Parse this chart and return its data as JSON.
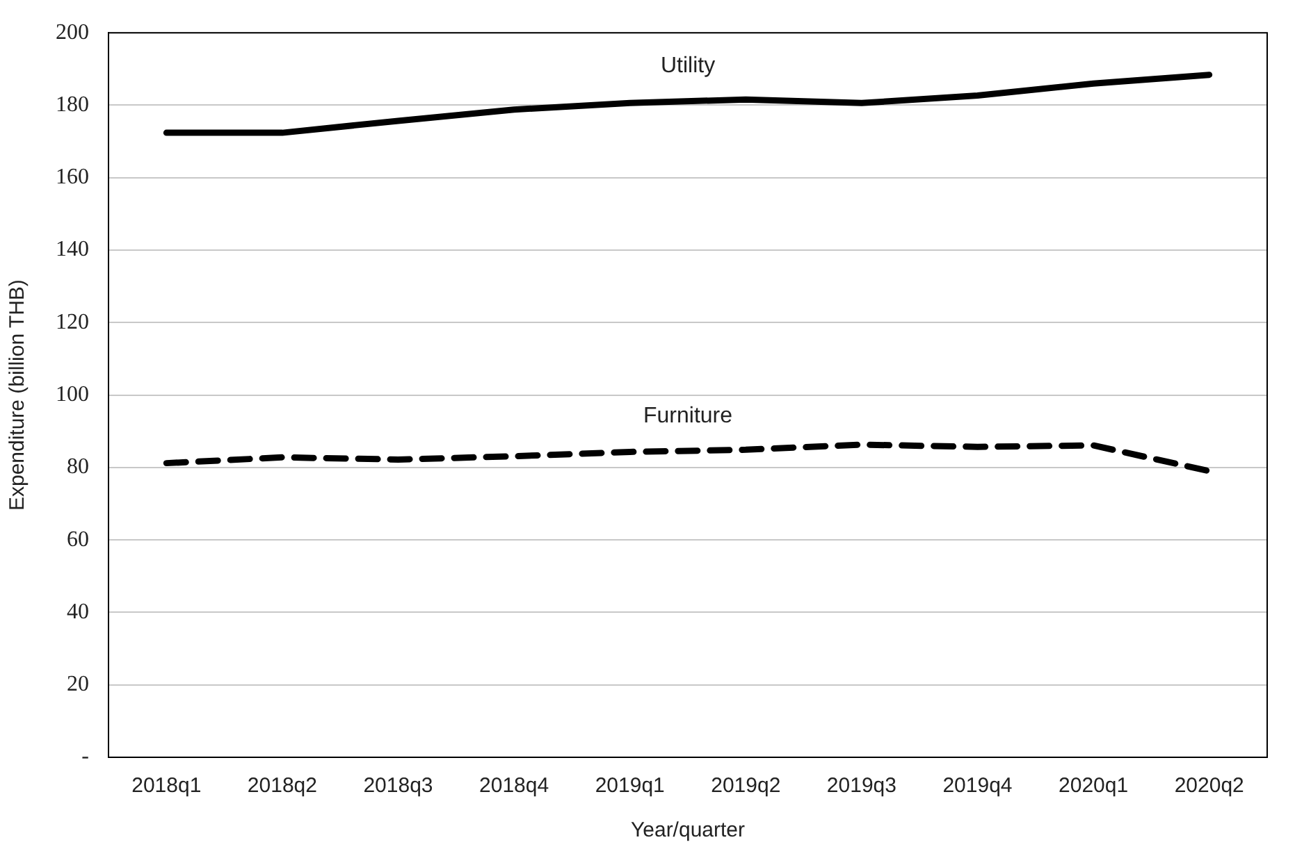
{
  "chart_data": {
    "type": "line",
    "xlabel": "Year/quarter",
    "ylabel": "Expenditure (billion THB)",
    "categories": [
      "2018q1",
      "2018q2",
      "2018q3",
      "2018q4",
      "2019q1",
      "2019q2",
      "2019q3",
      "2019q4",
      "2020q1",
      "2020q2"
    ],
    "series": [
      {
        "name": "Utility",
        "color": "#000000",
        "line_style": "solid",
        "values": [
          172.4,
          172.4,
          175.7,
          178.8,
          180.6,
          181.6,
          180.6,
          182.7,
          186,
          188.4
        ]
      },
      {
        "name": "Furniture",
        "color": "#000000",
        "line_style": "dashed",
        "values": [
          81.2,
          82.8,
          82.2,
          83.1,
          84.3,
          84.9,
          86.3,
          85.7,
          86.1,
          79
        ]
      }
    ],
    "ylim": [
      0,
      200
    ],
    "yticks": [
      {
        "value": 0,
        "label": "-"
      },
      20,
      40,
      60,
      80,
      100,
      120,
      140,
      160,
      180,
      200
    ],
    "grid": "y",
    "legend": false,
    "marker": "none"
  }
}
